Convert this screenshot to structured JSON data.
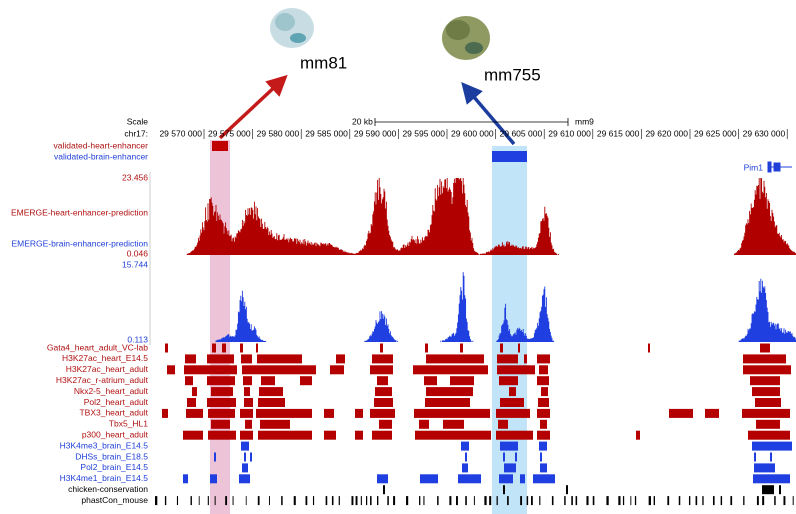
{
  "figure": {
    "images": [
      {
        "label": "mm81"
      },
      {
        "label": "mm755"
      }
    ],
    "scale": {
      "label": "Scale",
      "span": "20 kb",
      "assembly": "mm9"
    },
    "chromosome": "chr17:",
    "positions": [
      "29 570 000",
      "29 575 000",
      "29 580 000",
      "29 585 000",
      "29 590 000",
      "29 595 000",
      "29 600 000",
      "29 605 000",
      "29 610 000",
      "29 615 000",
      "29 620 000",
      "29 625 000",
      "29 630 000"
    ],
    "validated": [
      "validated-heart-enhancer",
      "validated-brain-enhancer"
    ],
    "signals": [
      {
        "name": "EMERGE-heart-enhancer-prediction",
        "max": "23.456",
        "min": "0.046"
      },
      {
        "name": "EMERGE-brain-enhancer-prediction",
        "max": "15.744",
        "min": "0.113"
      }
    ],
    "gene": "Pim1",
    "features": [
      "Gata4_heart_adult_VC-lab",
      "H3K27ac_heart_E14.5",
      "H3K27ac_heart_adult",
      "H3K27ac_r-atrium_adult",
      "Nkx2-5_heart_adult",
      "Pol2_heart_adult",
      "TBX3_heart_adult",
      "Tbx5_HL1",
      "p300_heart_adult",
      "H3K4me3_brain_E14.5",
      "DHSs_brain_E18.5",
      "Pol2_brain_E14.5",
      "H3K4me1_brain_E14.5",
      "chicken-conservation",
      "phastCon_mouse"
    ]
  }
}
